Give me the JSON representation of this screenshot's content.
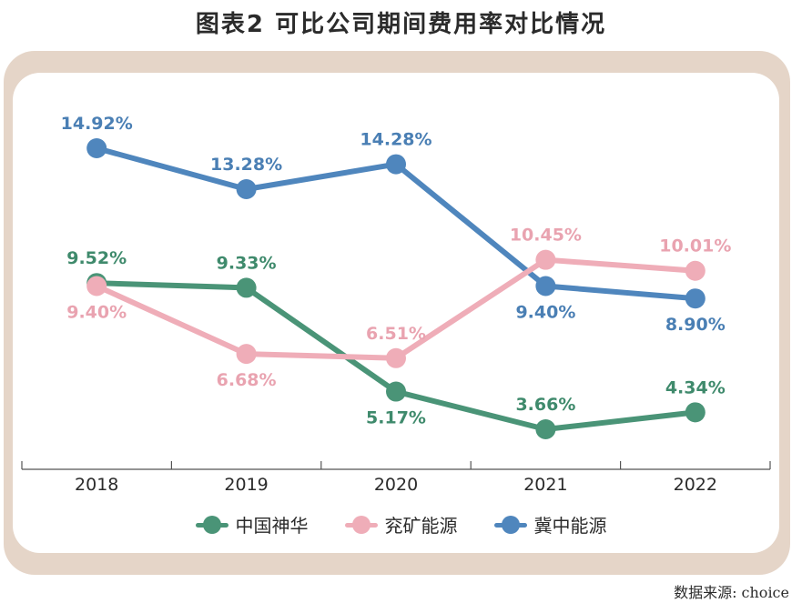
{
  "title": "图表2  可比公司期间费用率对比情况",
  "source": "数据来源: choice",
  "chart_data": {
    "type": "line",
    "title": "图表2  可比公司期间费用率对比情况",
    "xlabel": "",
    "ylabel": "",
    "categories": [
      "2018",
      "2019",
      "2020",
      "2021",
      "2022"
    ],
    "ylim": [
      2,
      16
    ],
    "grid": false,
    "legend_position": "bottom",
    "series": [
      {
        "name": "中国神华",
        "color": "#4a9477",
        "values": [
          9.52,
          9.33,
          5.17,
          3.66,
          4.34
        ],
        "labels": [
          "9.52%",
          "9.33%",
          "5.17%",
          "3.66%",
          "4.34%"
        ],
        "label_pos": [
          "above",
          "above",
          "below",
          "above",
          "above"
        ]
      },
      {
        "name": "兖矿能源",
        "color": "#efadb8",
        "values": [
          9.4,
          6.68,
          6.51,
          10.45,
          10.01
        ],
        "labels": [
          "9.40%",
          "6.68%",
          "6.51%",
          "10.45%",
          "10.01%"
        ],
        "label_pos": [
          "below",
          "below",
          "above",
          "above",
          "above"
        ]
      },
      {
        "name": "冀中能源",
        "color": "#4f86bd",
        "values": [
          14.92,
          13.28,
          14.28,
          9.4,
          8.9
        ],
        "labels": [
          "14.92%",
          "13.28%",
          "14.28%",
          "9.40%",
          "8.90%"
        ],
        "label_pos": [
          "above",
          "above",
          "above",
          "below",
          "below"
        ]
      }
    ]
  }
}
